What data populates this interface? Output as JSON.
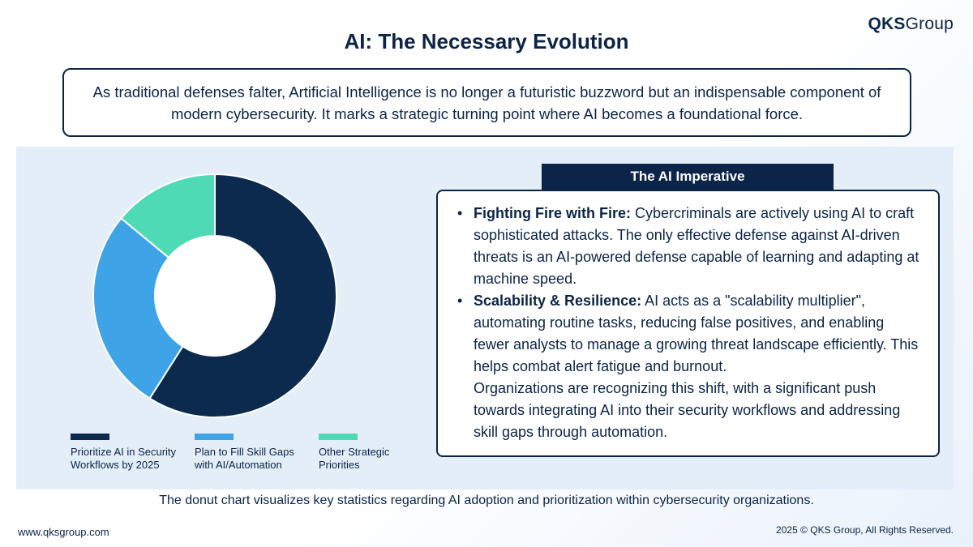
{
  "brand": {
    "name_bold": "QKS",
    "name_light": "Group"
  },
  "title": "AI: The Necessary Evolution",
  "intro": "As traditional defenses falter, Artificial Intelligence is no longer a futuristic buzzword but an indispensable component of modern cybersecurity. It marks a strategic turning point where AI becomes a foundational force.",
  "chart_data": {
    "type": "pie",
    "variant": "donut",
    "title": "",
    "series": [
      {
        "name": "Prioritize AI in Security Workflows by 2025",
        "value": 59,
        "color": "#0b2a4e"
      },
      {
        "name": "Plan to Fill Skill Gaps with AI/Automation",
        "value": 27,
        "color": "#3fa3e8"
      },
      {
        "name": "Other Strategic Priorities",
        "value": 14,
        "color": "#4ddab4"
      }
    ],
    "legend": {
      "position": "bottom"
    }
  },
  "imperative": {
    "header": "The AI Imperative",
    "bullets": [
      {
        "label": "Fighting Fire with Fire:",
        "text": " Cybercriminals are actively using AI to craft sophisticated attacks. The only effective defense against AI-driven threats is an AI-powered defense capable of learning and adapting at machine speed."
      },
      {
        "label": "Scalability & Resilience:",
        "text": " AI acts as a \"scalability multiplier\", automating routine tasks, reducing false positives, and enabling fewer analysts to manage a growing threat landscape efficiently. This helps combat alert fatigue and burnout."
      }
    ],
    "closing": "Organizations are recognizing this shift, with a significant push towards integrating AI into their security workflows and addressing skill gaps through automation."
  },
  "caption": "The donut chart visualizes key statistics regarding AI adoption and prioritization within cybersecurity organizations.",
  "footer": {
    "website": "www.qksgroup.com",
    "copyright": "2025 © QKS Group, All Rights Reserved."
  }
}
